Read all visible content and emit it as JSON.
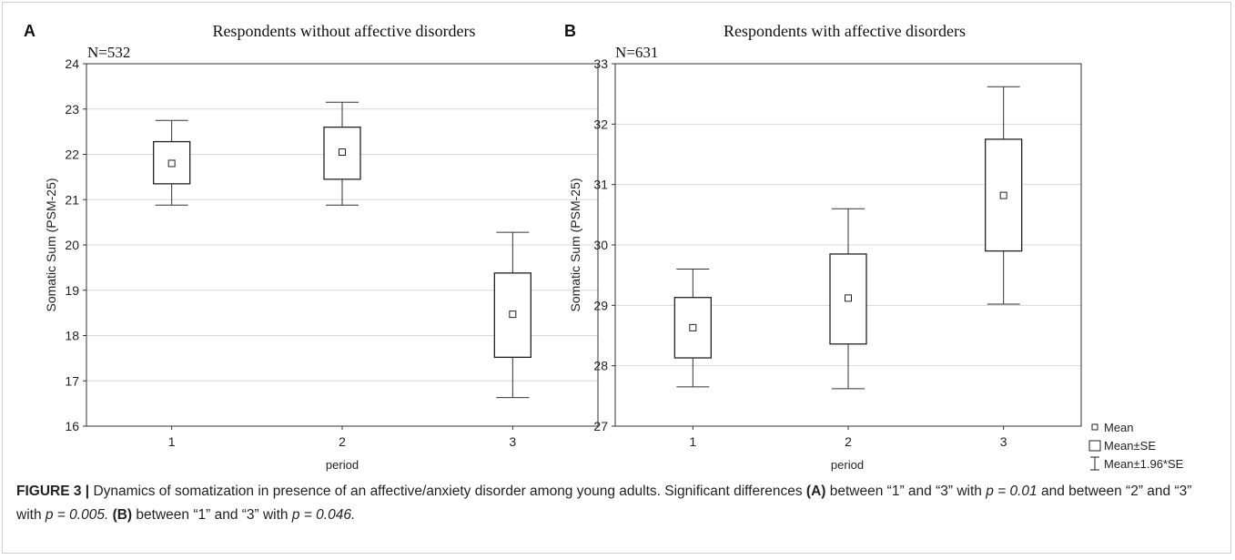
{
  "chart_data": [
    {
      "type": "box",
      "panel_label": "A",
      "title": "Respondents without affective disorders",
      "n_label": "N=532",
      "xlabel": "period",
      "ylabel": "Somatic Sum (PSM-25)",
      "categories": [
        "1",
        "2",
        "3"
      ],
      "ylim": [
        16,
        24
      ],
      "yticks": [
        16,
        17,
        18,
        19,
        20,
        21,
        22,
        23,
        24
      ],
      "grid": true,
      "series": [
        {
          "mean": 21.8,
          "se_low": 21.35,
          "se_high": 22.28,
          "ci_low": 20.88,
          "ci_high": 22.75
        },
        {
          "mean": 22.05,
          "se_low": 21.45,
          "se_high": 22.6,
          "ci_low": 20.88,
          "ci_high": 23.15
        },
        {
          "mean": 18.47,
          "se_low": 17.52,
          "se_high": 19.38,
          "ci_low": 16.63,
          "ci_high": 20.28
        }
      ]
    },
    {
      "type": "box",
      "panel_label": "B",
      "title": "Respondents with affective disorders",
      "n_label": "N=631",
      "xlabel": "period",
      "ylabel": "Somatic Sum (PSM-25)",
      "categories": [
        "1",
        "2",
        "3"
      ],
      "ylim": [
        27,
        33
      ],
      "yticks": [
        27,
        28,
        29,
        30,
        31,
        32,
        33
      ],
      "grid": true,
      "series": [
        {
          "mean": 28.63,
          "se_low": 28.13,
          "se_high": 29.13,
          "ci_low": 27.65,
          "ci_high": 29.6
        },
        {
          "mean": 29.12,
          "se_low": 28.36,
          "se_high": 29.85,
          "ci_low": 27.62,
          "ci_high": 30.6
        },
        {
          "mean": 30.82,
          "se_low": 29.9,
          "se_high": 31.75,
          "ci_low": 29.02,
          "ci_high": 32.62
        }
      ]
    }
  ],
  "legend": {
    "mean": "Mean",
    "se": "Mean±SE",
    "ci": "Mean±1.96*SE"
  },
  "caption": {
    "label": "FIGURE 3 |",
    "text1": " Dynamics of somatization in presence of an affective/anxiety disorder among young adults. Significant differences ",
    "a_ref": "(A)",
    "text2": " between “1” and “3” with ",
    "p1": "p = 0.01",
    "text3": " and between “2” and “3” with ",
    "p2": "p = 0.005.",
    "text4": " ",
    "b_ref": "(B)",
    "text5": " between “1” and “3” with ",
    "p3": "p = 0.046."
  },
  "colors": {
    "frame": "#333333",
    "grid": "#d8d8d8",
    "text": "#222222"
  }
}
